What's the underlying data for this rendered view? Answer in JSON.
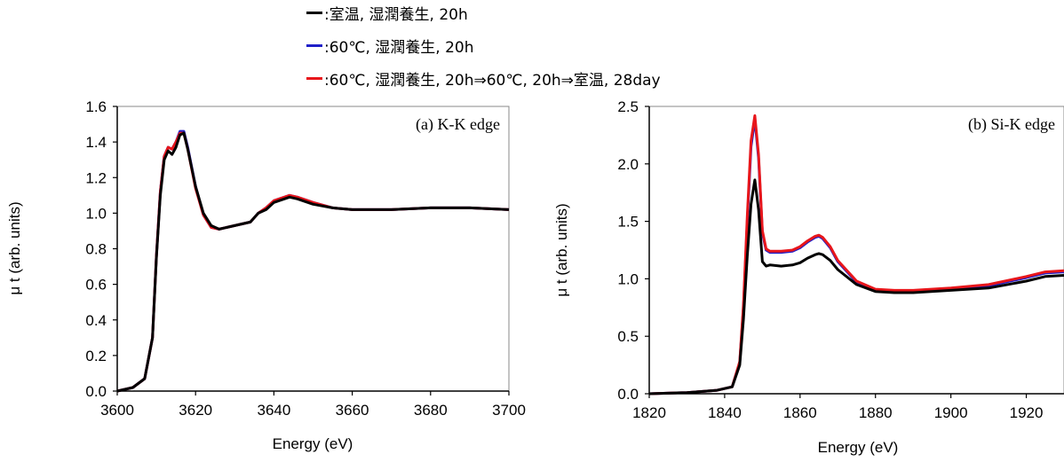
{
  "colors": {
    "black": "#000000",
    "blue": "#1f1fc8",
    "red": "#e8161b"
  },
  "legend": [
    {
      "name": "series-room-temp",
      "label": ":室温, 湿潤養生, 20h",
      "color": "#000000"
    },
    {
      "name": "series-60c",
      "label": ":60℃, 湿潤養生, 20h",
      "color": "#1f1fc8"
    },
    {
      "name": "series-60c-28day",
      "label": ":60℃, 湿潤養生, 20h⇒60℃, 20h⇒室温, 28day",
      "color": "#e8161b"
    }
  ],
  "chart_data": [
    {
      "type": "line",
      "title": "(a) K-K edge",
      "xlabel": "Energy (eV)",
      "ylabel": "μ t (arb. units)",
      "xlim": [
        3600,
        3700
      ],
      "ylim": [
        0,
        1.6
      ],
      "xticks": [
        "3600",
        "3620",
        "3640",
        "3660",
        "3680",
        "3700"
      ],
      "yticks": [
        "0.0",
        "0.2",
        "0.4",
        "0.6",
        "0.8",
        "1.0",
        "1.2",
        "1.4",
        "1.6"
      ],
      "xtick_values": [
        3600,
        3620,
        3640,
        3660,
        3680,
        3700
      ],
      "ytick_values": [
        0,
        0.2,
        0.4,
        0.6,
        0.8,
        1.0,
        1.2,
        1.4,
        1.6
      ],
      "grid": false,
      "series": [
        {
          "name": ":室温, 湿潤養生, 20h",
          "color": "#000000",
          "x": [
            3600,
            3604,
            3607,
            3609,
            3610,
            3611,
            3612,
            3613,
            3614,
            3615,
            3616,
            3617,
            3618,
            3620,
            3622,
            3624,
            3626,
            3628,
            3630,
            3634,
            3636,
            3638,
            3640,
            3644,
            3646,
            3650,
            3655,
            3660,
            3670,
            3680,
            3690,
            3700
          ],
          "y": [
            0.0,
            0.02,
            0.07,
            0.3,
            0.75,
            1.1,
            1.3,
            1.35,
            1.33,
            1.37,
            1.44,
            1.45,
            1.36,
            1.15,
            1.0,
            0.93,
            0.91,
            0.92,
            0.93,
            0.95,
            1.0,
            1.02,
            1.06,
            1.09,
            1.08,
            1.05,
            1.03,
            1.02,
            1.02,
            1.03,
            1.03,
            1.02
          ]
        },
        {
          "name": ":60℃, 湿潤養生, 20h",
          "color": "#1f1fc8",
          "x": [
            3600,
            3604,
            3607,
            3609,
            3610,
            3611,
            3612,
            3613,
            3614,
            3615,
            3616,
            3617,
            3618,
            3620,
            3622,
            3624,
            3626,
            3628,
            3630,
            3634,
            3636,
            3638,
            3640,
            3644,
            3646,
            3650,
            3655,
            3660,
            3670,
            3680,
            3690,
            3700
          ],
          "y": [
            0.0,
            0.02,
            0.07,
            0.3,
            0.76,
            1.12,
            1.32,
            1.37,
            1.36,
            1.4,
            1.46,
            1.46,
            1.37,
            1.15,
            0.99,
            0.92,
            0.91,
            0.92,
            0.93,
            0.95,
            1.0,
            1.03,
            1.07,
            1.1,
            1.09,
            1.06,
            1.03,
            1.02,
            1.02,
            1.03,
            1.03,
            1.02
          ]
        },
        {
          "name": ":60℃, 湿潤養生, 20h⇒60℃, 20h⇒室温, 28day",
          "color": "#e8161b",
          "x": [
            3600,
            3604,
            3607,
            3609,
            3610,
            3611,
            3612,
            3613,
            3614,
            3615,
            3616,
            3617,
            3618,
            3620,
            3622,
            3624,
            3626,
            3628,
            3630,
            3634,
            3636,
            3638,
            3640,
            3644,
            3646,
            3650,
            3655,
            3660,
            3670,
            3680,
            3690,
            3700
          ],
          "y": [
            0.0,
            0.02,
            0.07,
            0.3,
            0.76,
            1.12,
            1.32,
            1.37,
            1.36,
            1.4,
            1.45,
            1.45,
            1.36,
            1.14,
            0.99,
            0.92,
            0.91,
            0.92,
            0.93,
            0.95,
            1.0,
            1.03,
            1.07,
            1.1,
            1.09,
            1.06,
            1.03,
            1.02,
            1.02,
            1.03,
            1.03,
            1.02
          ]
        }
      ]
    },
    {
      "type": "line",
      "title": "(b) Si-K edge",
      "xlabel": "Energy (eV)",
      "ylabel": "μ t (arb. units)",
      "xlim": [
        1820,
        1930
      ],
      "ylim": [
        0,
        2.5
      ],
      "xticks": [
        "1820",
        "1840",
        "1860",
        "1880",
        "1900",
        "1920"
      ],
      "yticks": [
        "0.0",
        "0.5",
        "1.0",
        "1.5",
        "2.0",
        "2.5"
      ],
      "xtick_values": [
        1820,
        1840,
        1860,
        1880,
        1900,
        1920
      ],
      "ytick_values": [
        0,
        0.5,
        1.0,
        1.5,
        2.0,
        2.5
      ],
      "grid": false,
      "series": [
        {
          "name": ":室温, 湿潤養生, 20h",
          "color": "#000000",
          "x": [
            1820,
            1830,
            1838,
            1842,
            1844,
            1845,
            1846,
            1847,
            1848,
            1849,
            1850,
            1851,
            1852,
            1855,
            1858,
            1860,
            1862,
            1864,
            1865,
            1866,
            1868,
            1870,
            1875,
            1880,
            1885,
            1890,
            1900,
            1910,
            1920,
            1925,
            1930
          ],
          "y": [
            0.0,
            0.01,
            0.03,
            0.06,
            0.25,
            0.65,
            1.2,
            1.65,
            1.86,
            1.6,
            1.15,
            1.11,
            1.12,
            1.11,
            1.12,
            1.14,
            1.18,
            1.21,
            1.22,
            1.21,
            1.16,
            1.08,
            0.95,
            0.89,
            0.88,
            0.88,
            0.9,
            0.92,
            0.98,
            1.02,
            1.03
          ]
        },
        {
          "name": ":60℃, 湿潤養生, 20h",
          "color": "#1f1fc8",
          "x": [
            1820,
            1830,
            1838,
            1842,
            1844,
            1845,
            1846,
            1847,
            1848,
            1849,
            1850,
            1851,
            1852,
            1855,
            1858,
            1860,
            1862,
            1864,
            1865,
            1866,
            1868,
            1870,
            1875,
            1880,
            1885,
            1890,
            1900,
            1910,
            1920,
            1925,
            1930
          ],
          "y": [
            0.0,
            0.01,
            0.03,
            0.06,
            0.27,
            0.75,
            1.5,
            2.15,
            2.39,
            2.05,
            1.4,
            1.25,
            1.23,
            1.23,
            1.24,
            1.27,
            1.32,
            1.36,
            1.37,
            1.35,
            1.27,
            1.15,
            0.97,
            0.9,
            0.89,
            0.89,
            0.91,
            0.94,
            1.01,
            1.05,
            1.06
          ]
        },
        {
          "name": ":60℃, 湿潤養生, 20h⇒60℃, 20h⇒室温, 28day",
          "color": "#e8161b",
          "x": [
            1820,
            1830,
            1838,
            1842,
            1844,
            1845,
            1846,
            1847,
            1848,
            1849,
            1850,
            1851,
            1852,
            1855,
            1858,
            1860,
            1862,
            1864,
            1865,
            1866,
            1868,
            1870,
            1875,
            1880,
            1885,
            1890,
            1900,
            1910,
            1920,
            1925,
            1930
          ],
          "y": [
            0.0,
            0.01,
            0.03,
            0.06,
            0.28,
            0.78,
            1.55,
            2.2,
            2.42,
            2.08,
            1.42,
            1.26,
            1.24,
            1.24,
            1.25,
            1.28,
            1.33,
            1.37,
            1.38,
            1.36,
            1.28,
            1.16,
            0.98,
            0.91,
            0.9,
            0.9,
            0.92,
            0.95,
            1.02,
            1.06,
            1.07
          ]
        }
      ]
    }
  ]
}
